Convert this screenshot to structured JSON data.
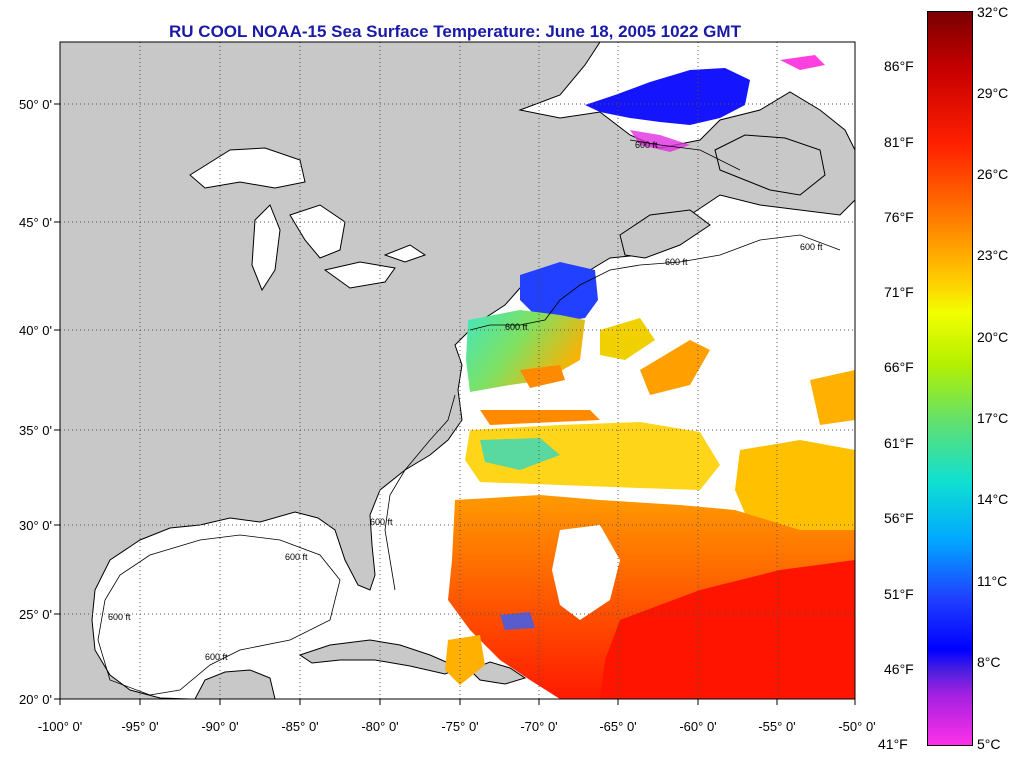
{
  "title": "RU COOL  NOAA-15  Sea Surface Temperature:  June 18, 2005 1022 GMT",
  "longitude_labels": [
    "-100° 0'",
    "-95° 0'",
    "-90° 0'",
    "-85° 0'",
    "-80° 0'",
    "-75° 0'",
    "-70° 0'",
    "-65° 0'",
    "-60° 0'",
    "-55° 0'",
    "-50° 0'"
  ],
  "latitude_labels": [
    "50° 0'",
    "45° 0'",
    "40° 0'",
    "35° 0'",
    "30° 0'",
    "25° 0'",
    "20° 0'"
  ],
  "isobath_label": "600 ft",
  "colorbar": {
    "celsius_labels": [
      "32°C",
      "29°C",
      "26°C",
      "23°C",
      "20°C",
      "17°C",
      "14°C",
      "11°C",
      "8°C",
      "5°C"
    ],
    "fahrenheit_labels": [
      "86°F",
      "81°F",
      "76°F",
      "71°F",
      "66°F",
      "61°F",
      "56°F",
      "51°F",
      "46°F",
      "41°F"
    ]
  },
  "colors": {
    "land": "#c8c8c8",
    "title": "#1a1aa8",
    "cold": "#1010ff",
    "warm": "#ff3000"
  }
}
